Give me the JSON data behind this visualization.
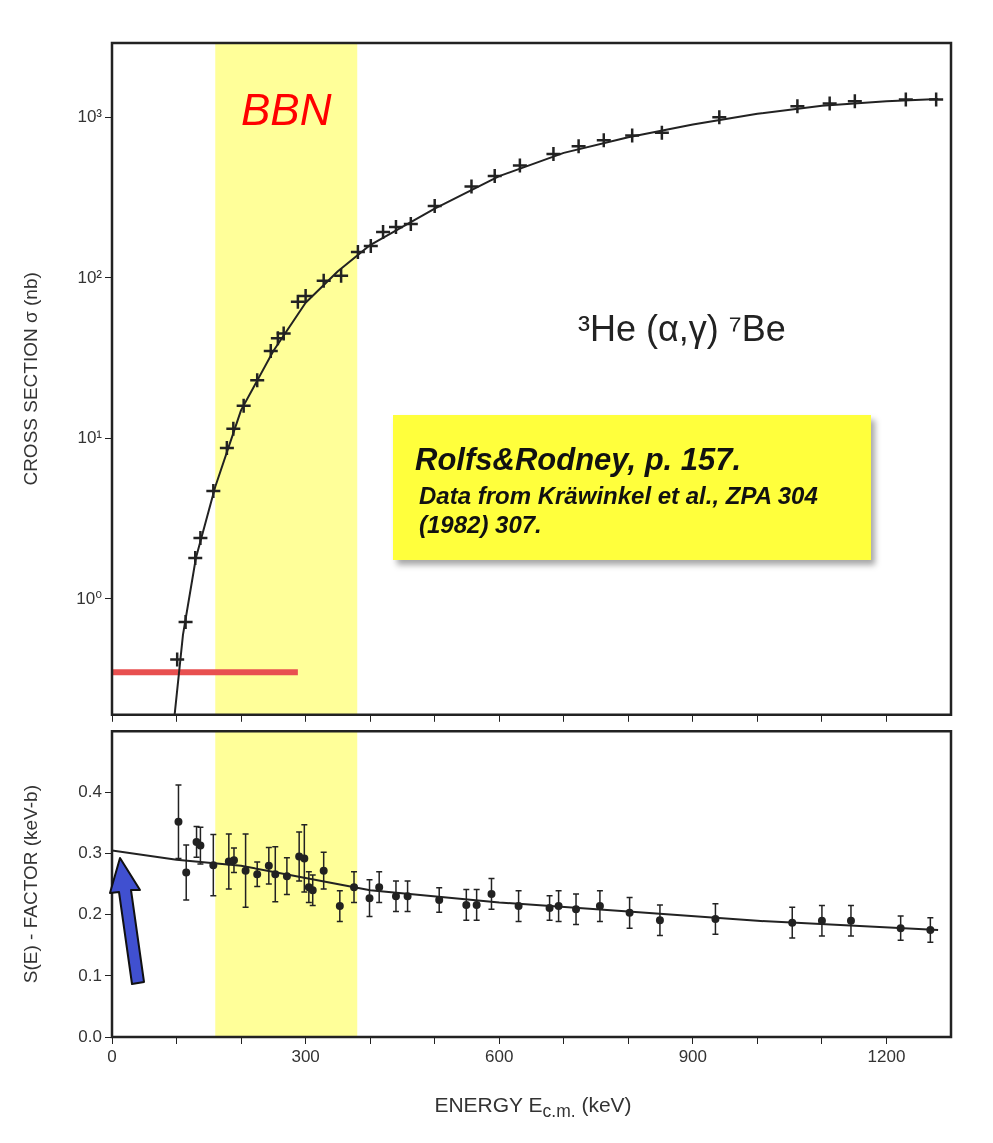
{
  "chart_data": [
    {
      "type": "scatter",
      "ylabel": "CROSS SECTION σ (nb)",
      "annotations": [
        "³He (α,γ) ⁷Be",
        "Rolfs&Rodney, p. 157.",
        "Data from Kräwinkel et al., ZPA 304 (1982) 307."
      ],
      "xlim": [
        0,
        1300
      ],
      "xticks": [
        {
          "value": 0,
          "label": null
        },
        {
          "value": 100,
          "label": null
        },
        {
          "value": 200,
          "label": null
        },
        {
          "value": 300,
          "label": null
        },
        {
          "value": 400,
          "label": null
        },
        {
          "value": 500,
          "label": null
        },
        {
          "value": 600,
          "label": null
        },
        {
          "value": 700,
          "label": null
        },
        {
          "value": 800,
          "label": null
        },
        {
          "value": 900,
          "label": null
        },
        {
          "value": 1000,
          "label": null
        },
        {
          "value": 1100,
          "label": null
        },
        {
          "value": 1200,
          "label": null
        }
      ],
      "ylim": [
        0.19,
        2900
      ],
      "yticks": [
        {
          "value": 1,
          "label": "10⁰"
        },
        {
          "value": 10,
          "label": "10¹"
        },
        {
          "value": 100,
          "label": "10²"
        },
        {
          "value": 1000,
          "label": "10³"
        }
      ],
      "log": "y",
      "tick_labels": "y",
      "grid": false,
      "bands": [
        {
          "axis": "x",
          "from": 160,
          "to": 380,
          "label": "BBN",
          "color": "#ffff99"
        }
      ],
      "series": [
        {
          "type": "scatter",
          "color": "#222222",
          "marker": "cross",
          "x": [
            101,
            114,
            129,
            137,
            157,
            178,
            188,
            204,
            225,
            246,
            257,
            266,
            288,
            300,
            328,
            355,
            381,
            401,
            420,
            440,
            463,
            500,
            557,
            593,
            632,
            684,
            723,
            762,
            806,
            852,
            941,
            1062,
            1112,
            1151,
            1230,
            1277
          ],
          "values": [
            0.42,
            0.72,
            1.8,
            2.4,
            4.7,
            8.7,
            11.5,
            16,
            23,
            35,
            42,
            45,
            71,
            77,
            96,
            103,
            145,
            158,
            193,
            207,
            216,
            280,
            370,
            430,
            500,
            590,
            660,
            720,
            770,
            800,
            1000,
            1170,
            1220,
            1260,
            1290,
            1290
          ]
        },
        {
          "type": "line",
          "color": "#222222",
          "x": [
            97,
            110,
            130,
            160,
            200,
            250,
            300,
            350,
            400,
            500,
            600,
            700,
            800,
            900,
            1000,
            1100,
            1200,
            1280
          ],
          "values": [
            0.19,
            0.6,
            1.8,
            5,
            15,
            35,
            70,
            110,
            160,
            270,
            430,
            600,
            750,
            900,
            1050,
            1180,
            1260,
            1300
          ]
        },
        {
          "type": "line",
          "color": "#e85050",
          "x": [
            0,
            288
          ],
          "values": [
            0.35,
            0.35
          ]
        }
      ]
    },
    {
      "type": "scatter",
      "xlabel": "ENERGY E$_{c.m.}$ (keV)",
      "ylabel": "S(E) - FACTOR (keV-b)",
      "xlim": [
        0,
        1300
      ],
      "xticks": [
        0,
        {
          "value": 100,
          "label": null
        },
        {
          "value": 200,
          "label": null
        },
        300,
        {
          "value": 400,
          "label": null
        },
        {
          "value": 500,
          "label": null
        },
        600,
        {
          "value": 700,
          "label": null
        },
        {
          "value": 800,
          "label": null
        },
        900,
        {
          "value": 1000,
          "label": null
        },
        {
          "value": 1100,
          "label": null
        },
        1200
      ],
      "ylim": [
        0,
        0.5
      ],
      "yticks": [
        {
          "value": 0,
          "label": "0.0"
        },
        0.1,
        0.2,
        0.3,
        0.4
      ],
      "grid": false,
      "bands": [
        {
          "axis": "x",
          "from": 160,
          "to": 380,
          "color": "#ffff99"
        }
      ],
      "series": [
        {
          "type": "scatter",
          "color": "#222222",
          "marker": "circle",
          "x": [
            103,
            115,
            131,
            137,
            157,
            181,
            189,
            207,
            225,
            243,
            253,
            271,
            290,
            298,
            305,
            311,
            328,
            353,
            375,
            399,
            414,
            440,
            458,
            507,
            549,
            565,
            588,
            630,
            678,
            692,
            719,
            756,
            802,
            849,
            935,
            1054,
            1100,
            1145,
            1222,
            1268
          ],
          "values": [
            0.352,
            0.269,
            0.319,
            0.313,
            0.281,
            0.287,
            0.289,
            0.272,
            0.266,
            0.28,
            0.266,
            0.263,
            0.295,
            0.292,
            0.245,
            0.24,
            0.272,
            0.214,
            0.245,
            0.227,
            0.245,
            0.23,
            0.23,
            0.224,
            0.216,
            0.216,
            0.234,
            0.214,
            0.211,
            0.214,
            0.209,
            0.214,
            0.203,
            0.191,
            0.193,
            0.187,
            0.19,
            0.19,
            0.178,
            0.175
          ],
          "errors": [
            0.06,
            0.045,
            0.025,
            0.03,
            0.05,
            0.045,
            0.02,
            0.06,
            0.02,
            0.03,
            0.045,
            0.03,
            0.04,
            0.055,
            0.025,
            0.025,
            0.03,
            0.025,
            0.025,
            0.03,
            0.025,
            0.025,
            0.025,
            0.02,
            0.025,
            0.025,
            0.025,
            0.025,
            0.02,
            0.025,
            0.025,
            0.025,
            0.025,
            0.025,
            0.025,
            0.025,
            0.025,
            0.025,
            0.02,
            0.02
          ]
        },
        {
          "type": "line",
          "color": "#222222",
          "x": [
            0,
            100,
            200,
            300,
            400,
            600,
            800,
            1000,
            1280
          ],
          "values": [
            0.305,
            0.29,
            0.28,
            0.26,
            0.24,
            0.22,
            0.205,
            0.19,
            0.175
          ]
        }
      ]
    }
  ]
}
